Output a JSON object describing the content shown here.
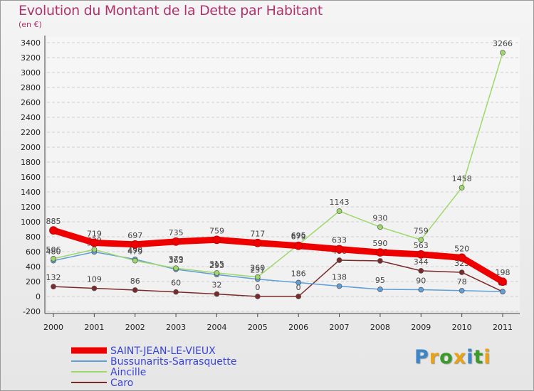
{
  "title": "Evolution du Montant de la Dette par Habitant",
  "subtitle": "(en €)",
  "logo": {
    "letters": [
      "P",
      "r",
      "o",
      "x",
      "i",
      "t",
      "i"
    ],
    "colors": [
      "#3a86c8",
      "#e8a317",
      "#3a9a2a",
      "#e8a317",
      "#3a86c8",
      "#3a9a2a",
      "#e8a317"
    ]
  },
  "chart_data": {
    "type": "line",
    "title": "Evolution du Montant de la Dette par Habitant",
    "subtitle": "(en €)",
    "xlabel": "",
    "ylabel": "",
    "categories": [
      "2000",
      "2001",
      "2002",
      "2003",
      "2004",
      "2005",
      "2006",
      "2007",
      "2008",
      "2009",
      "2010",
      "2011"
    ],
    "ylim": [
      -200,
      3400
    ],
    "yticks": [
      -200,
      0,
      200,
      400,
      600,
      800,
      1000,
      1200,
      1400,
      1600,
      1800,
      2000,
      2200,
      2400,
      2600,
      2800,
      3000,
      3200,
      3400
    ],
    "grid": true,
    "legend": "bottom-left",
    "series": [
      {
        "name": "SAINT-JEAN-LE-VIEUX",
        "color": "#ee0000",
        "values": [
          885,
          719,
          697,
          735,
          759,
          717,
          679,
          633,
          590,
          563,
          520,
          198
        ],
        "labels": [
          "885",
          "719",
          "697",
          "735",
          "759",
          "717",
          "679",
          "633",
          "590",
          "563",
          "520",
          "198"
        ]
      },
      {
        "name": "Bussunarits-Sarrasquette",
        "color": "#5f9ed6",
        "values": [
          480,
          596,
          498,
          363,
          293,
          231,
          186,
          138,
          95,
          90,
          78,
          64
        ],
        "labels": [
          "480",
          "596",
          "498",
          "363",
          "293",
          "231",
          "186",
          "138",
          "95",
          "90",
          "78",
          "64"
        ]
      },
      {
        "name": "Aincille",
        "color": "#9ed86a",
        "values": [
          506,
          629,
          479,
          379,
          315,
          260,
          695,
          1143,
          930,
          759,
          1458,
          3266
        ],
        "labels": [
          "506",
          "629",
          "479",
          "379",
          "315",
          "260",
          "695",
          "1143",
          "930",
          "759",
          "1458",
          "3266"
        ]
      },
      {
        "name": "Caro",
        "color": "#7a2a2a",
        "values": [
          132,
          109,
          86,
          60,
          32,
          0,
          0,
          486,
          476,
          344,
          323,
          64
        ],
        "labels": [
          "132",
          "109",
          "86",
          "60",
          "32",
          "0",
          "0",
          "486",
          "476",
          "344",
          "323",
          "64"
        ]
      }
    ]
  }
}
